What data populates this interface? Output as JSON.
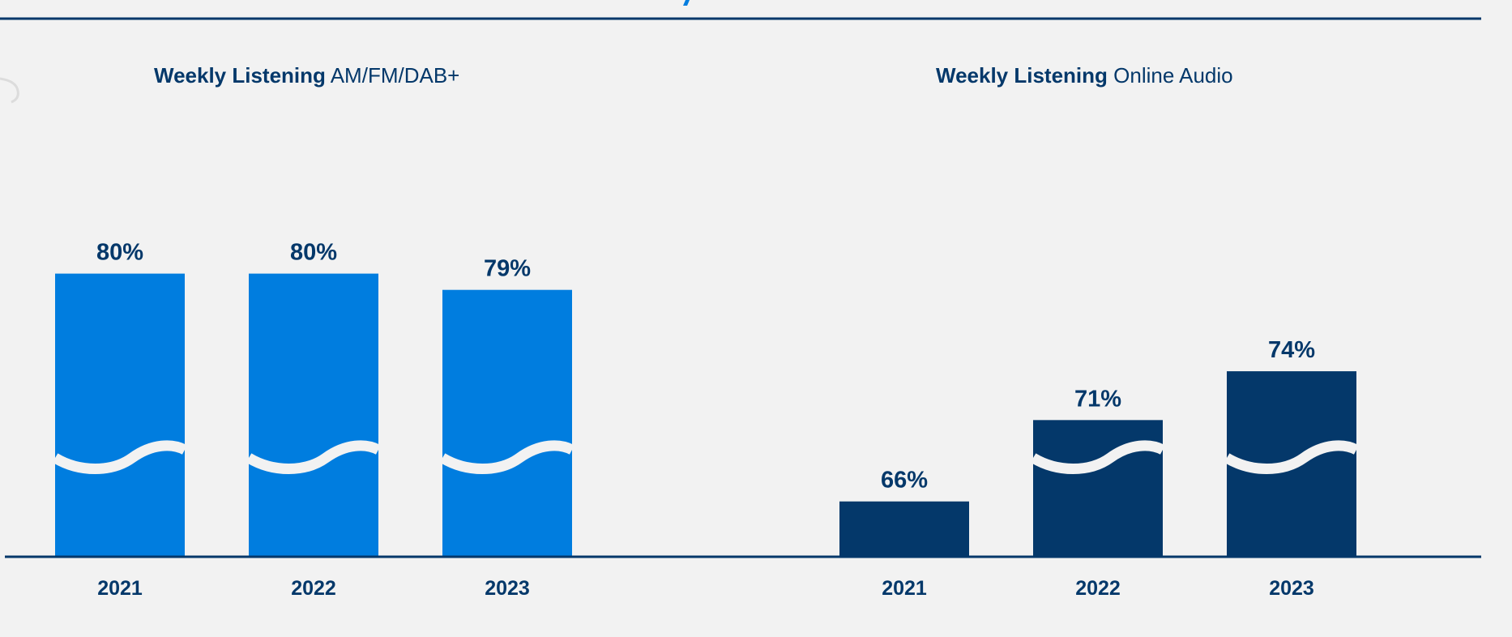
{
  "colors": {
    "background": "#f2f2f2",
    "am_fm_dab_bars": "#007ddf",
    "online_audio_bars": "#04386a",
    "text": "#04386a",
    "rule": "#04386a",
    "break_mark": "#f2f2f2"
  },
  "chart_data": [
    {
      "type": "bar",
      "title_bold": "Weekly Listening",
      "title_light": "AM/FM/DAB+",
      "categories": [
        "2021",
        "2022",
        "2023"
      ],
      "values": [
        80,
        80,
        79
      ],
      "value_labels": [
        "80%",
        "80%",
        "79%"
      ],
      "y_unit": "%",
      "axis_break": true,
      "grid": false,
      "legend": "none"
    },
    {
      "type": "bar",
      "title_bold": "Weekly Listening",
      "title_light": "Online Audio",
      "categories": [
        "2021",
        "2022",
        "2023"
      ],
      "values": [
        66,
        71,
        74
      ],
      "value_labels": [
        "66%",
        "71%",
        "74%"
      ],
      "y_unit": "%",
      "axis_break": true,
      "grid": false,
      "legend": "none"
    }
  ]
}
